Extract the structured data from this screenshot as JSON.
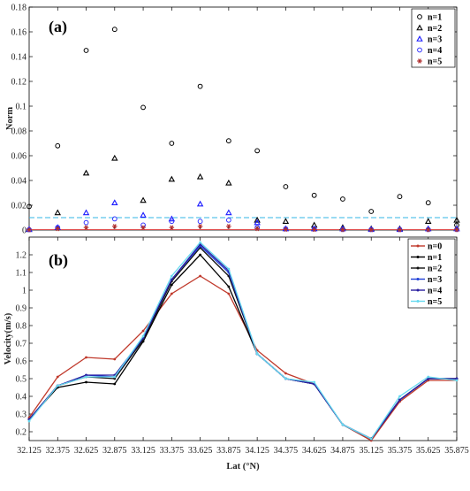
{
  "chart_data": [
    {
      "type": "scatter",
      "panel_label": "(a)",
      "title": "",
      "xlabel": "",
      "ylabel": "Norm",
      "xlim": [
        32.125,
        35.875
      ],
      "ylim": [
        0,
        0.18
      ],
      "x": [
        32.125,
        32.375,
        32.625,
        32.875,
        33.125,
        33.375,
        33.625,
        33.875,
        34.125,
        34.375,
        34.625,
        34.875,
        35.125,
        35.375,
        35.625,
        35.875
      ],
      "x_tick_labels": [
        "32.125",
        "32.375",
        "32.625",
        "32.875",
        "33.125",
        "33.375",
        "33.625",
        "33.875",
        "34.125",
        "34.375",
        "34.625",
        "34.875",
        "35.125",
        "35.375",
        "35.625",
        "35.875"
      ],
      "y_tick_labels": [
        "0",
        "0.02",
        "0.04",
        "0.06",
        "0.08",
        "0.1",
        "0.12",
        "0.14",
        "0.16",
        "0.18"
      ],
      "series": [
        {
          "name": "n=1",
          "marker": "circle",
          "color": "#000000",
          "values": [
            0.019,
            0.068,
            0.145,
            0.162,
            0.099,
            0.07,
            0.116,
            0.072,
            0.064,
            0.035,
            0.028,
            0.025,
            0.015,
            0.027,
            0.022,
            0.004
          ]
        },
        {
          "name": "n=2",
          "marker": "triangle",
          "color": "#000000",
          "values": [
            0.0005,
            0.014,
            0.046,
            0.058,
            0.024,
            0.041,
            0.043,
            0.038,
            0.008,
            0.007,
            0.004,
            0.002,
            0.001,
            0.001,
            0.007,
            0.008
          ]
        },
        {
          "name": "n=3",
          "marker": "triangle",
          "color": "#1a1aff",
          "values": [
            0.0005,
            0.002,
            0.014,
            0.022,
            0.012,
            0.009,
            0.021,
            0.014,
            0.006,
            0.001,
            0.001,
            0.001,
            0.0005,
            0.0005,
            0.001,
            0.001
          ]
        },
        {
          "name": "n=4",
          "marker": "circle",
          "color": "#3333ff",
          "values": [
            0.0003,
            0.002,
            0.006,
            0.009,
            0.004,
            0.007,
            0.007,
            0.008,
            0.002,
            0.001,
            0.001,
            0.0005,
            0.0005,
            0.0005,
            0.0005,
            0.0005
          ]
        },
        {
          "name": "n=5",
          "marker": "star",
          "color": "#b03030",
          "values": [
            0.0002,
            0.001,
            0.002,
            0.003,
            0.002,
            0.002,
            0.003,
            0.003,
            0.001,
            0.0005,
            0.0003,
            0.0002,
            0.0002,
            0.0002,
            0.0002,
            0.0002
          ]
        }
      ],
      "reference_line": {
        "y": 0.01,
        "color": "#33b5e5",
        "style": "dashed"
      },
      "baseline": {
        "y": 0.0,
        "color": "#e05050",
        "style": "solid"
      },
      "legend": "top-right"
    },
    {
      "type": "line",
      "panel_label": "(b)",
      "title": "",
      "xlabel": "Lat (°N)",
      "ylabel": "Velocity(m/s)",
      "xlim": [
        32.125,
        35.875
      ],
      "ylim": [
        0.15,
        1.3
      ],
      "x": [
        32.125,
        32.375,
        32.625,
        32.875,
        33.125,
        33.375,
        33.625,
        33.875,
        34.125,
        34.375,
        34.625,
        34.875,
        35.125,
        35.375,
        35.625,
        35.875
      ],
      "x_tick_labels": [
        "32.125",
        "32.375",
        "32.625",
        "32.875",
        "33.125",
        "33.375",
        "33.625",
        "33.875",
        "34.125",
        "34.375",
        "34.625",
        "34.875",
        "35.125",
        "35.375",
        "35.625",
        "35.875"
      ],
      "y_tick_labels": [
        "0.2",
        "0.3",
        "0.4",
        "0.5",
        "0.6",
        "0.7",
        "0.8",
        "0.9",
        "1",
        "1.1",
        "1.2"
      ],
      "series": [
        {
          "name": "n=0",
          "color": "#c0392b",
          "values": [
            0.28,
            0.51,
            0.62,
            0.61,
            0.77,
            0.98,
            1.08,
            0.98,
            0.66,
            0.53,
            0.47,
            0.24,
            0.15,
            0.37,
            0.49,
            0.49
          ]
        },
        {
          "name": "n=1",
          "color": "#000000",
          "values": [
            0.27,
            0.45,
            0.48,
            0.47,
            0.71,
            1.03,
            1.2,
            1.02,
            0.64,
            0.5,
            0.47,
            0.24,
            0.16,
            0.38,
            0.5,
            0.5
          ]
        },
        {
          "name": "n=2",
          "color": "#111111",
          "values": [
            0.27,
            0.46,
            0.51,
            0.5,
            0.72,
            1.05,
            1.24,
            1.08,
            0.64,
            0.5,
            0.47,
            0.24,
            0.16,
            0.38,
            0.5,
            0.5
          ]
        },
        {
          "name": "n=3",
          "color": "#1f3fd8",
          "values": [
            0.27,
            0.46,
            0.52,
            0.51,
            0.73,
            1.06,
            1.25,
            1.1,
            0.64,
            0.5,
            0.47,
            0.24,
            0.16,
            0.38,
            0.5,
            0.5
          ]
        },
        {
          "name": "n=4",
          "color": "#2a1fa0",
          "values": [
            0.27,
            0.46,
            0.52,
            0.52,
            0.73,
            1.06,
            1.26,
            1.11,
            0.64,
            0.5,
            0.47,
            0.24,
            0.16,
            0.38,
            0.5,
            0.5
          ]
        },
        {
          "name": "n=5",
          "color": "#66d9ef",
          "values": [
            0.26,
            0.46,
            0.51,
            0.51,
            0.74,
            1.08,
            1.27,
            1.12,
            0.64,
            0.5,
            0.48,
            0.24,
            0.16,
            0.4,
            0.51,
            0.49
          ]
        }
      ],
      "legend": "top-right"
    }
  ]
}
